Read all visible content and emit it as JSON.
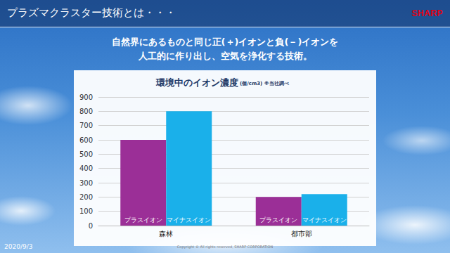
{
  "header": {
    "title": "プラズマクラスター技術とは・・・",
    "logo": "SHARP"
  },
  "subtitle": [
    "自然界にあるものと同じ正(＋)イオンと負(－)イオンを",
    "人工的に作り出し、空気を浄化する技術。"
  ],
  "chart_data": {
    "type": "bar",
    "title": "環境中のイオン濃度",
    "subtitle": "(個/cm3) ※当社調べ",
    "categories": [
      "森林",
      "都市部"
    ],
    "series": [
      {
        "name": "プラスイオン",
        "color": "#9b2f97",
        "values": [
          600,
          200
        ]
      },
      {
        "name": "マイナスイオン",
        "color": "#1ab0ea",
        "values": [
          800,
          220
        ]
      }
    ],
    "ylim": [
      0,
      900
    ],
    "yticks": [
      0,
      100,
      200,
      300,
      400,
      500,
      600,
      700,
      800,
      900
    ],
    "grid": true
  },
  "footer": {
    "date": "2020/9/3",
    "copyright": "Copyright © All rights reserved, SHARP CORPORATION"
  }
}
